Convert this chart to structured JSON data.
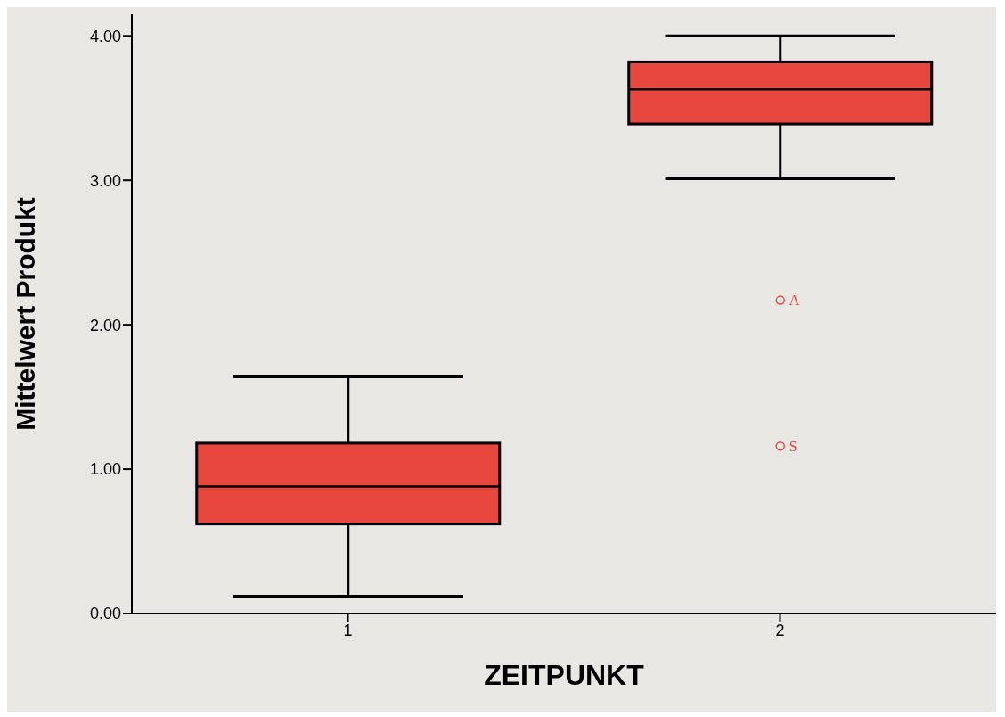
{
  "chart_data": {
    "type": "box",
    "xlabel": "ZEITPUNKT",
    "ylabel": "Mittelwert Produkt",
    "categories": [
      "1",
      "2"
    ],
    "color": "#e8473d",
    "boxes": [
      {
        "low": 0.12,
        "q1": 0.62,
        "median": 0.88,
        "q3": 1.18,
        "high": 1.64
      },
      {
        "low": 3.01,
        "q1": 3.39,
        "median": 3.63,
        "q3": 3.82,
        "high": 4.0,
        "outliers": [
          2.17,
          1.16
        ]
      }
    ],
    "ylim": [
      0,
      4.15
    ],
    "yticks": [
      {
        "value": 0,
        "label": "0.00"
      },
      {
        "value": 1,
        "label": "1.00"
      },
      {
        "value": 2,
        "label": "2.00"
      },
      {
        "value": 3,
        "label": "3.00"
      },
      {
        "value": 4,
        "label": "4.00"
      }
    ],
    "annotations": [
      "A",
      "S"
    ],
    "grid": false,
    "legend": false
  }
}
